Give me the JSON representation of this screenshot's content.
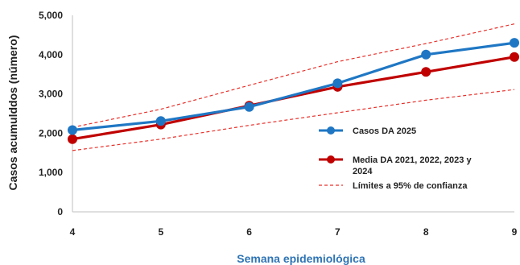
{
  "chart_data": {
    "type": "line",
    "title": "",
    "xlabel": "Semana epidemiológica",
    "ylabel": "Casos acumulddos (número)",
    "x": [
      4,
      5,
      6,
      7,
      8,
      9
    ],
    "xlim": [
      4,
      9
    ],
    "ylim": [
      0,
      5000
    ],
    "y_ticks": [
      "0",
      "1,000",
      "2,000",
      "3,000",
      "4,000",
      "5,000"
    ],
    "x_ticks": [
      "4",
      "5",
      "6",
      "7",
      "8",
      "9"
    ],
    "grid": false,
    "legend_position": "center-right",
    "series": [
      {
        "name": "Casos DA 2025",
        "values": [
          2080,
          2310,
          2670,
          3270,
          4000,
          4300
        ],
        "color": "#1f77c4",
        "style": "solid-markers"
      },
      {
        "name": "Media DA 2021, 2022, 2023 y 2024",
        "values": [
          1850,
          2220,
          2700,
          3180,
          3560,
          3940
        ],
        "color": "#c00000",
        "style": "solid-markers"
      },
      {
        "name": "Límites a 95% de confianza",
        "values": [
          2150,
          2610,
          3220,
          3820,
          4280,
          4780
        ],
        "color": "#e8302a",
        "style": "dashed"
      },
      {
        "name": "",
        "values": [
          1560,
          1850,
          2200,
          2520,
          2840,
          3110
        ],
        "color": "#e8302a",
        "style": "dashed"
      }
    ]
  }
}
